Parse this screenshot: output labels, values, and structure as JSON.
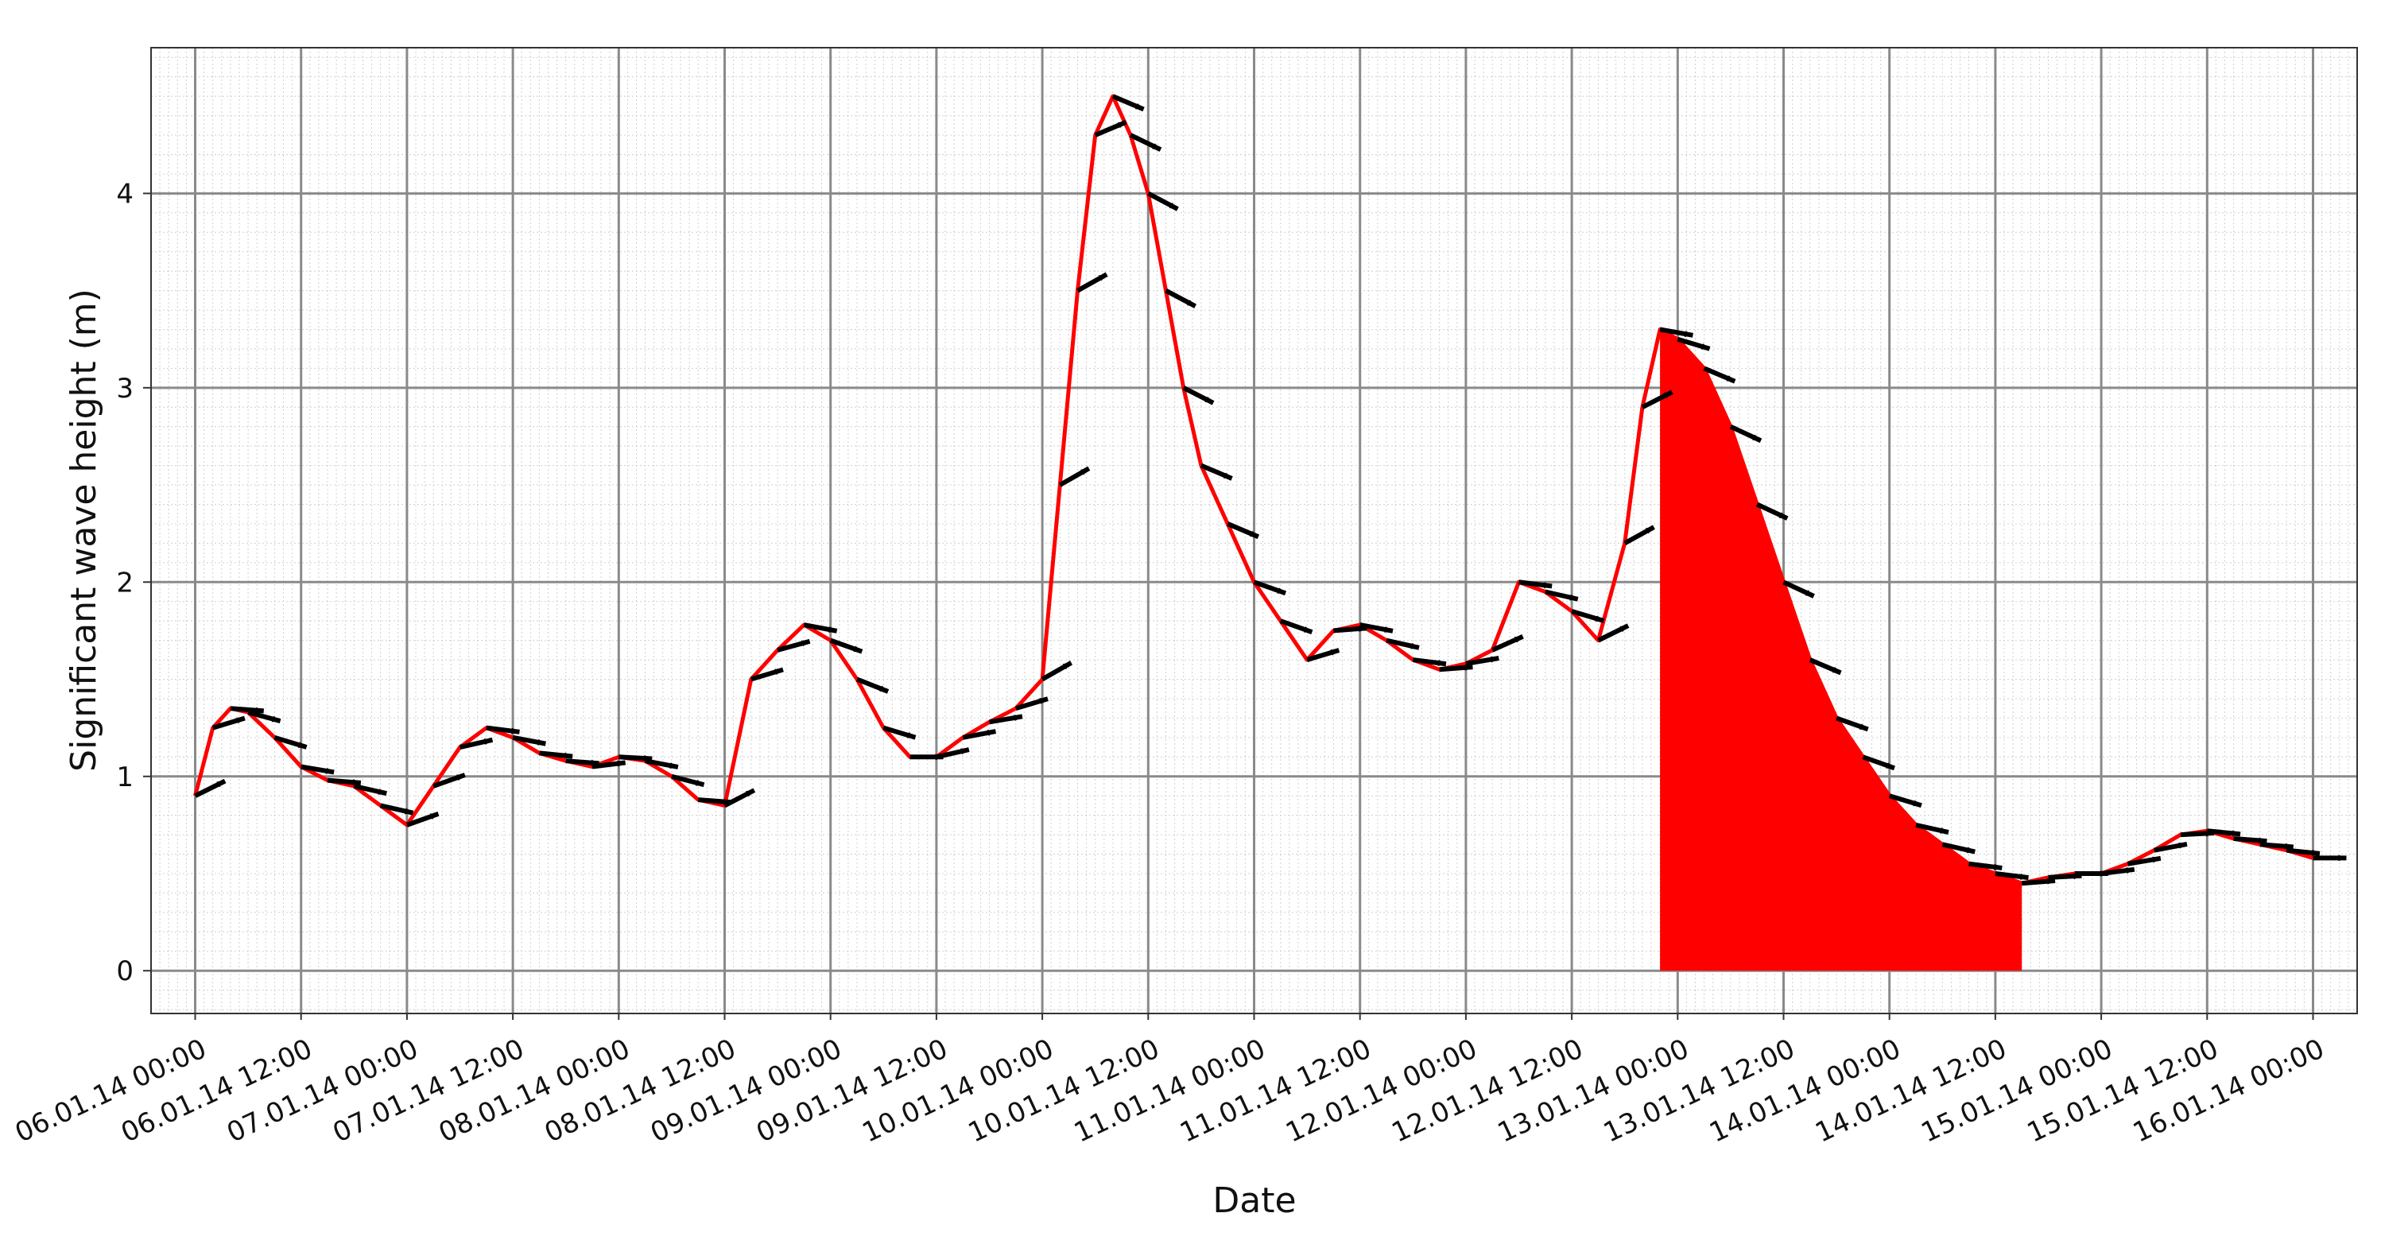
{
  "chart_data": {
    "type": "line",
    "xlabel": "Date",
    "ylabel": "Significant wave height (m)",
    "x_tick_labels": [
      "06.01.14 00:00",
      "06.01.14 12:00",
      "07.01.14 00:00",
      "07.01.14 12:00",
      "08.01.14 00:00",
      "08.01.14 12:00",
      "09.01.14 00:00",
      "09.01.14 12:00",
      "10.01.14 00:00",
      "10.01.14 12:00",
      "11.01.14 00:00",
      "11.01.14 12:00",
      "12.01.14 00:00",
      "12.01.14 12:00",
      "13.01.14 00:00",
      "13.01.14 12:00",
      "14.01.14 00:00",
      "14.01.14 12:00",
      "15.01.14 00:00",
      "15.01.14 12:00",
      "16.01.14 00:00"
    ],
    "y_ticks": [
      0,
      1,
      2,
      3,
      4
    ],
    "xlim": [
      "05.01.14 19:00",
      "16.01.14 05:00"
    ],
    "ylim": [
      -0.22,
      4.75
    ],
    "grid": true,
    "minor_grid": true,
    "line_color": "#ff0000",
    "arrow_color": "#000000",
    "fill_color": "#ff0000",
    "series": [
      {
        "x": [
          "06.01.14 00:00",
          "06.01.14 02:00",
          "06.01.14 04:00",
          "06.01.14 06:00",
          "06.01.14 09:00",
          "06.01.14 12:00",
          "06.01.14 15:00",
          "06.01.14 18:00",
          "06.01.14 21:00",
          "07.01.14 00:00",
          "07.01.14 03:00",
          "07.01.14 06:00",
          "07.01.14 09:00",
          "07.01.14 12:00",
          "07.01.14 15:00",
          "07.01.14 18:00",
          "07.01.14 21:00",
          "08.01.14 00:00",
          "08.01.14 03:00",
          "08.01.14 06:00",
          "08.01.14 09:00",
          "08.01.14 12:00",
          "08.01.14 15:00",
          "08.01.14 18:00",
          "08.01.14 21:00",
          "09.01.14 00:00",
          "09.01.14 03:00",
          "09.01.14 06:00",
          "09.01.14 09:00",
          "09.01.14 12:00",
          "09.01.14 15:00",
          "09.01.14 18:00",
          "09.01.14 21:00",
          "10.01.14 00:00",
          "10.01.14 02:00",
          "10.01.14 04:00",
          "10.01.14 06:00",
          "10.01.14 08:00",
          "10.01.14 10:00",
          "10.01.14 12:00",
          "10.01.14 14:00",
          "10.01.14 16:00",
          "10.01.14 18:00",
          "10.01.14 21:00",
          "11.01.14 00:00",
          "11.01.14 03:00",
          "11.01.14 06:00",
          "11.01.14 09:00",
          "11.01.14 12:00",
          "11.01.14 15:00",
          "11.01.14 18:00",
          "11.01.14 21:00",
          "12.01.14 00:00",
          "12.01.14 03:00",
          "12.01.14 06:00",
          "12.01.14 09:00",
          "12.01.14 12:00",
          "12.01.14 15:00",
          "12.01.14 18:00",
          "12.01.14 20:00",
          "12.01.14 22:00",
          "13.01.14 00:00",
          "13.01.14 03:00",
          "13.01.14 06:00",
          "13.01.14 09:00",
          "13.01.14 12:00",
          "13.01.14 15:00",
          "13.01.14 18:00",
          "13.01.14 21:00",
          "14.01.14 00:00",
          "14.01.14 03:00",
          "14.01.14 06:00",
          "14.01.14 09:00",
          "14.01.14 12:00",
          "14.01.14 15:00",
          "14.01.14 18:00",
          "14.01.14 21:00",
          "15.01.14 00:00",
          "15.01.14 03:00",
          "15.01.14 06:00",
          "15.01.14 09:00",
          "15.01.14 12:00",
          "15.01.14 15:00",
          "15.01.14 18:00",
          "15.01.14 21:00",
          "16.01.14 00:00"
        ],
        "y": [
          0.9,
          1.25,
          1.35,
          1.33,
          1.2,
          1.05,
          0.98,
          0.95,
          0.85,
          0.75,
          0.95,
          1.15,
          1.25,
          1.2,
          1.12,
          1.08,
          1.05,
          1.1,
          1.08,
          1.0,
          0.88,
          0.85,
          1.5,
          1.65,
          1.78,
          1.7,
          1.5,
          1.25,
          1.1,
          1.1,
          1.2,
          1.28,
          1.35,
          1.5,
          2.5,
          3.5,
          4.3,
          4.5,
          4.3,
          4.0,
          3.5,
          3.0,
          2.6,
          2.3,
          2.0,
          1.8,
          1.6,
          1.75,
          1.78,
          1.7,
          1.6,
          1.55,
          1.58,
          1.65,
          2.0,
          1.95,
          1.85,
          1.7,
          2.2,
          2.9,
          3.3,
          3.25,
          3.1,
          2.8,
          2.4,
          2.0,
          1.6,
          1.3,
          1.1,
          0.9,
          0.75,
          0.65,
          0.55,
          0.5,
          0.45,
          0.48,
          0.5,
          0.5,
          0.55,
          0.62,
          0.7,
          0.72,
          0.68,
          0.65,
          0.62,
          0.58
        ]
      }
    ],
    "filled_region": {
      "x_start": "12.01.14 22:00",
      "x_end": "14.01.14 15:00",
      "baseline": 0
    }
  }
}
